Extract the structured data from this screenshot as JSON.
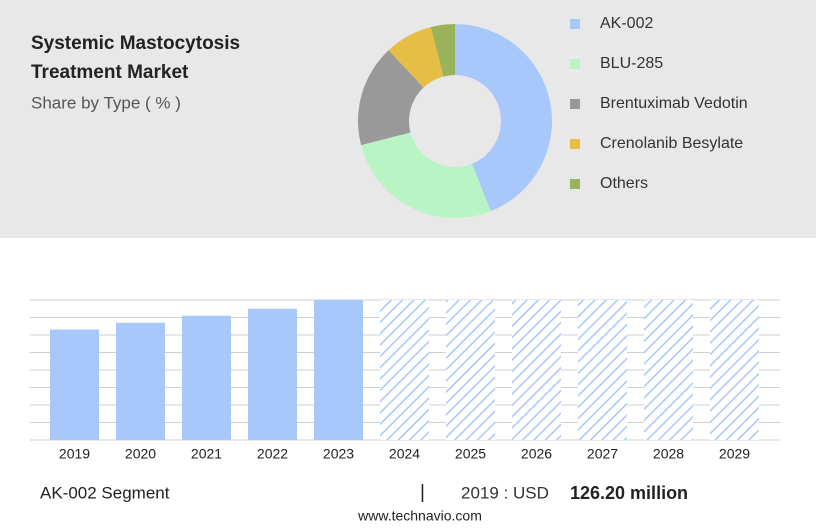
{
  "chart_data": [
    {
      "type": "pie",
      "title": [
        "Systemic Mastocytosis",
        "Treatment Market"
      ],
      "subtitle": "Share by Type ( % )",
      "categories": [
        "AK-002",
        "BLU-285",
        "Brentuximab Vedotin",
        "Crenolanib Besylate",
        "Others"
      ],
      "values": [
        44,
        27,
        17,
        8,
        4
      ],
      "colors": [
        "#a8c8fb",
        "#b8f4c4",
        "#999999",
        "#e6bd45",
        "#9ab35b"
      ]
    },
    {
      "type": "bar",
      "categories": [
        "2019",
        "2020",
        "2021",
        "2022",
        "2023",
        "2024",
        "2025",
        "2026",
        "2027",
        "2028",
        "2029"
      ],
      "values": [
        126.2,
        134,
        142,
        150,
        160,
        null,
        null,
        null,
        null,
        null,
        null
      ],
      "color": "#a8c8fb",
      "ylim": [
        0,
        160
      ],
      "grid": true
    }
  ],
  "footer": {
    "segment": "AK-002 Segment",
    "separator": "|",
    "year_label": "2019 : USD",
    "value": "126.20 million",
    "source": "www.technavio.com"
  }
}
